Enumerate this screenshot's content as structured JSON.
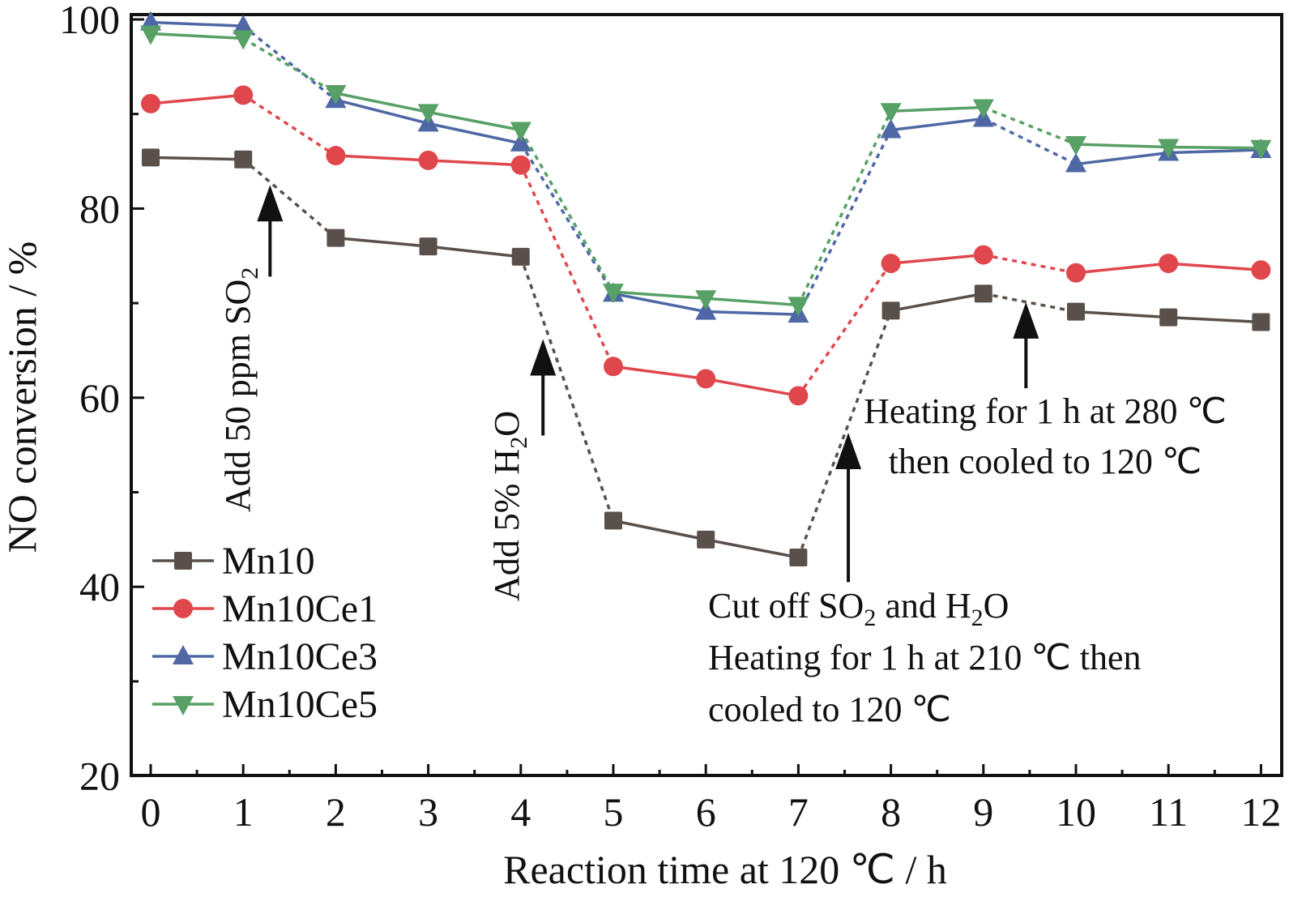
{
  "chart_data": {
    "type": "line",
    "title": "",
    "xlabel": "Reaction time at 120 ℃ / h",
    "ylabel": "NO conversion / %",
    "xlim": [
      0,
      12
    ],
    "ylim": [
      20,
      100
    ],
    "x": [
      0,
      1,
      2,
      3,
      4,
      5,
      6,
      7,
      8,
      9,
      10,
      11,
      12
    ],
    "x_ticks": [
      0,
      1,
      2,
      3,
      4,
      5,
      6,
      7,
      8,
      9,
      10,
      11,
      12
    ],
    "x_tick_labels": [
      "0",
      "1",
      "2",
      "3",
      "4",
      "5",
      "6",
      "7",
      "8",
      "9",
      "10",
      "11",
      "12"
    ],
    "y_ticks": [
      20,
      40,
      60,
      80,
      100
    ],
    "y_tick_labels": [
      "20",
      "40",
      "60",
      "80",
      "100"
    ],
    "y_minor_ticks": [
      30,
      50,
      70,
      90
    ],
    "grid": false,
    "legend_position": "bottom-left",
    "dashed_segments": [
      [
        1,
        2
      ],
      [
        4,
        5
      ],
      [
        7,
        8
      ],
      [
        9,
        10
      ]
    ],
    "series": [
      {
        "name": "Mn10",
        "marker": "square",
        "color": "#5a504b",
        "values": [
          85.4,
          85.2,
          76.9,
          76.0,
          74.9,
          47.0,
          45.0,
          43.1,
          69.2,
          71.0,
          69.1,
          68.5,
          68.0
        ]
      },
      {
        "name": "Mn10Ce1",
        "marker": "circle",
        "color": "#e0474c",
        "values": [
          91.1,
          92.0,
          85.6,
          85.1,
          84.6,
          63.3,
          62.0,
          60.2,
          74.2,
          75.1,
          73.2,
          74.2,
          73.5
        ]
      },
      {
        "name": "Mn10Ce3",
        "marker": "triangle-up",
        "color": "#4f68a5",
        "values": [
          99.7,
          99.3,
          91.5,
          89.0,
          86.9,
          71.0,
          69.1,
          68.8,
          88.3,
          89.5,
          84.7,
          85.9,
          86.2
        ]
      },
      {
        "name": "Mn10Ce5",
        "marker": "triangle-down",
        "color": "#57a066",
        "values": [
          98.5,
          98.0,
          92.2,
          90.2,
          88.3,
          71.2,
          70.5,
          69.8,
          90.3,
          90.7,
          86.8,
          86.5,
          86.4
        ]
      }
    ],
    "annotations": [
      {
        "id": "so2",
        "text_parts": [
          {
            "t": "Add 50 ppm SO"
          },
          {
            "t": "2",
            "sub": true
          }
        ],
        "arrow": {
          "x": 1.29,
          "y_from": 72.8,
          "y_to": 82.5
        },
        "rotated": true
      },
      {
        "id": "h2o",
        "text_parts": [
          {
            "t": "Add 5% H"
          },
          {
            "t": "2",
            "sub": true
          },
          {
            "t": "O"
          }
        ],
        "arrow": {
          "x": 4.24,
          "y_from": 56.0,
          "y_to": 66.2
        },
        "rotated": true
      },
      {
        "id": "cutoff",
        "lines": [
          [
            {
              "t": "Cut off SO"
            },
            {
              "t": "2",
              "sub": true
            },
            {
              "t": " and H"
            },
            {
              "t": "2",
              "sub": true
            },
            {
              "t": "O"
            }
          ],
          [
            {
              "t": "Heating for 1 h at 210 ℃ then"
            }
          ],
          [
            {
              "t": "cooled to 120 ℃"
            }
          ]
        ],
        "arrow": {
          "x": 7.54,
          "y_from": 40.5,
          "y_to": 56.3
        }
      },
      {
        "id": "heat280",
        "lines": [
          [
            {
              "t": "Heating for 1 h at 280 ℃"
            }
          ],
          [
            {
              "t": "then cooled to 120 ℃"
            }
          ]
        ],
        "arrow": {
          "x": 9.46,
          "y_from": 61.0,
          "y_to": 70.1
        }
      }
    ]
  }
}
